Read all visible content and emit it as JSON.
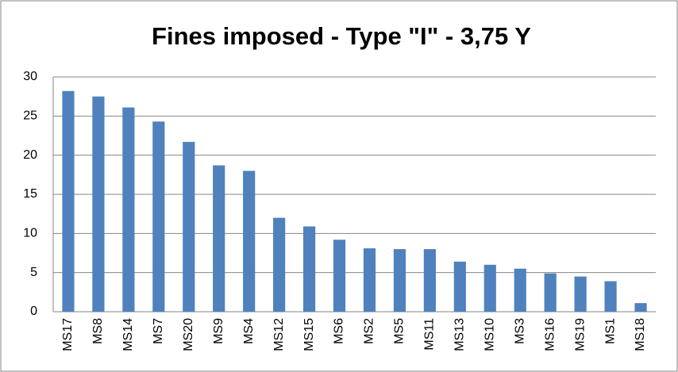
{
  "chart_data": {
    "type": "bar",
    "title": "Fines imposed - Type \"I\" - 3,75 Y",
    "categories": [
      "MS17",
      "MS8",
      "MS14",
      "MS7",
      "MS20",
      "MS9",
      "MS4",
      "MS12",
      "MS15",
      "MS6",
      "MS2",
      "MS5",
      "MS11",
      "MS13",
      "MS10",
      "MS3",
      "MS16",
      "MS19",
      "MS1",
      "MS18"
    ],
    "values": [
      28.2,
      27.5,
      26.1,
      24.3,
      21.7,
      18.7,
      18.0,
      12.0,
      10.9,
      9.2,
      8.1,
      8.0,
      8.0,
      6.4,
      6.0,
      5.5,
      4.9,
      4.5,
      3.9,
      1.1
    ],
    "color": "#4f81bd",
    "ylim": [
      0,
      30
    ],
    "yticks": [
      0,
      5,
      10,
      15,
      20,
      25,
      30
    ],
    "grid": true
  }
}
